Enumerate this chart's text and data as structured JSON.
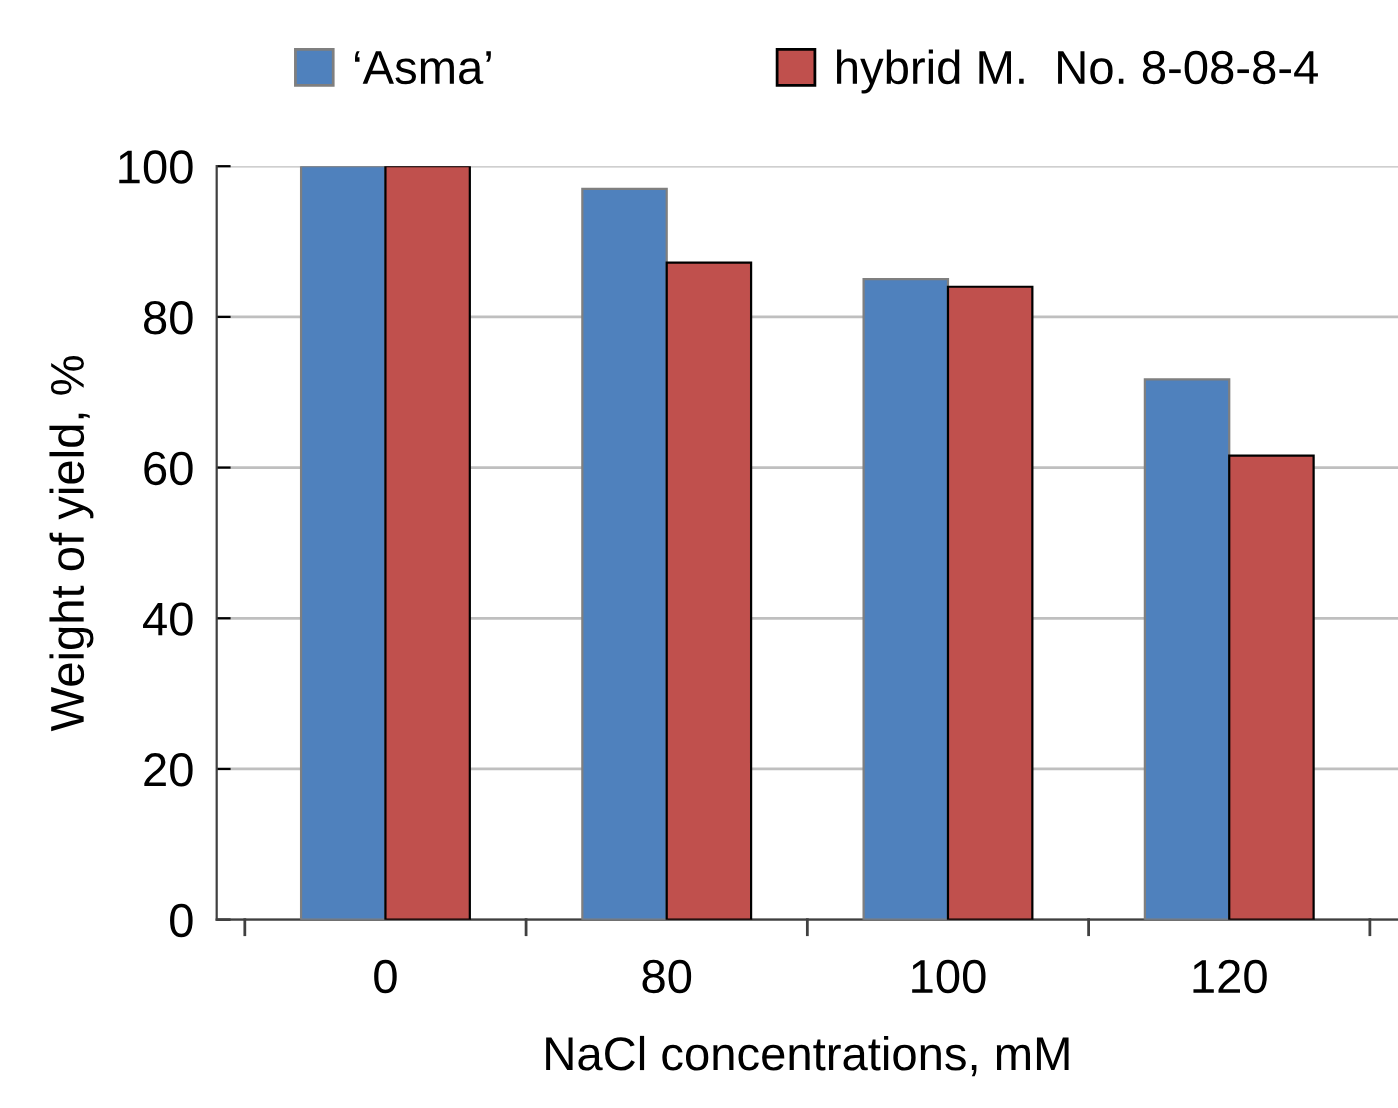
{
  "chart_data": {
    "type": "bar",
    "xlabel": "NaCl concentrations, mM",
    "ylabel": "Weight of yield, %",
    "categories": [
      "0",
      "80",
      "100",
      "120"
    ],
    "series": [
      {
        "name": "‘Asma’",
        "color": "#4f81bd",
        "values": [
          100,
          97,
          85,
          71.7
        ]
      },
      {
        "name": "hybrid M.  No. 8-08-8-4",
        "color": "#c0504d",
        "values": [
          100,
          87.2,
          84,
          61.6
        ]
      }
    ],
    "ylim": [
      0,
      100
    ],
    "yticks": [
      0,
      20,
      40,
      60,
      80,
      100
    ],
    "grid": "y",
    "legend": "top"
  }
}
